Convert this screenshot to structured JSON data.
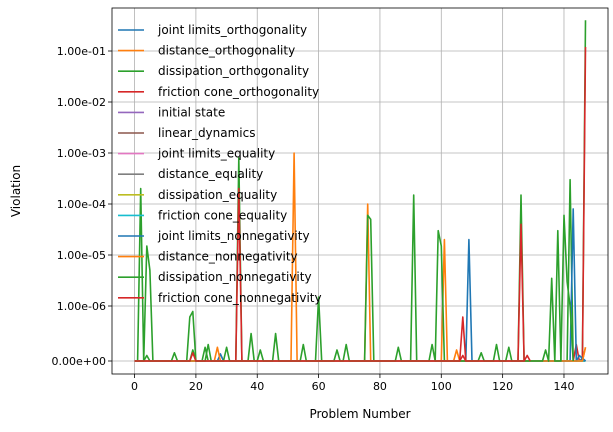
{
  "chart_data": {
    "type": "line",
    "xlabel": "Problem Number",
    "ylabel": "Violation",
    "xlim": [
      -7.35,
      154.35
    ],
    "x_ticks": [
      0,
      20,
      40,
      60,
      80,
      100,
      120,
      140
    ],
    "y_scale": "symlog",
    "y_tick_labels": [
      "0.00e+00",
      "1.00e-06",
      "1.00e-05",
      "1.00e-04",
      "1.00e-03",
      "1.00e-02",
      "1.00e-01"
    ],
    "grid": true,
    "legend_position": "upper-left",
    "series": [
      {
        "name": "joint limits_orthogonality",
        "color": "#1f77b4",
        "points": [
          [
            0,
            0
          ],
          [
            27,
            0
          ],
          [
            28,
            1.3e-07
          ],
          [
            29,
            0
          ],
          [
            108,
            0
          ],
          [
            109,
            2e-05
          ],
          [
            110,
            0
          ],
          [
            145,
            0
          ],
          [
            146,
            5e-08
          ],
          [
            147,
            0
          ]
        ]
      },
      {
        "name": "distance_orthogonality",
        "color": "#ff7f0e",
        "points": [
          [
            0,
            0
          ],
          [
            26,
            0
          ],
          [
            27,
            2.5e-07
          ],
          [
            28,
            0
          ],
          [
            51,
            0
          ],
          [
            52,
            0.001
          ],
          [
            53,
            0
          ],
          [
            75,
            0
          ],
          [
            76,
            0.0001
          ],
          [
            77,
            0
          ],
          [
            100,
            0
          ],
          [
            101,
            2e-05
          ],
          [
            102,
            0
          ],
          [
            104,
            0
          ],
          [
            105,
            2e-07
          ],
          [
            106,
            0
          ],
          [
            146,
            0
          ],
          [
            147,
            2.5e-07
          ]
        ]
      },
      {
        "name": "dissipation_orthogonality",
        "color": "#2ca02c",
        "points": [
          [
            0,
            0
          ],
          [
            1,
            0
          ],
          [
            2,
            0.0002
          ],
          [
            3,
            0
          ],
          [
            4,
            1.5e-05
          ],
          [
            5,
            5e-06
          ],
          [
            6,
            0
          ],
          [
            17,
            0
          ],
          [
            18,
            8e-07
          ],
          [
            19,
            9e-07
          ],
          [
            20,
            0
          ],
          [
            22,
            0
          ],
          [
            23,
            2.5e-07
          ],
          [
            24,
            0
          ],
          [
            33,
            0
          ],
          [
            34,
            0.0008
          ],
          [
            35,
            0
          ],
          [
            37,
            0
          ],
          [
            38,
            5e-07
          ],
          [
            39,
            0
          ],
          [
            59,
            0
          ],
          [
            60,
            1.5e-06
          ],
          [
            61,
            0
          ],
          [
            75,
            0
          ],
          [
            76,
            6e-05
          ],
          [
            77,
            5e-05
          ],
          [
            78,
            0
          ],
          [
            90,
            0
          ],
          [
            91,
            0.00015
          ],
          [
            92,
            0
          ],
          [
            98,
            0
          ],
          [
            99,
            3e-05
          ],
          [
            100,
            1.5e-05
          ],
          [
            101,
            0
          ],
          [
            125,
            0
          ],
          [
            126,
            0.00015
          ],
          [
            127,
            0
          ],
          [
            137,
            0
          ],
          [
            138,
            3e-05
          ],
          [
            139,
            0
          ],
          [
            141,
            0
          ],
          [
            142,
            0.0003
          ],
          [
            143,
            0
          ],
          [
            146,
            0
          ],
          [
            147,
            0.4
          ]
        ]
      },
      {
        "name": "friction cone_orthogonality",
        "color": "#d62728",
        "points": [
          [
            0,
            0
          ],
          [
            33,
            0
          ],
          [
            34,
            0.0002
          ],
          [
            35,
            0
          ],
          [
            106,
            0
          ],
          [
            107,
            8e-07
          ],
          [
            108,
            0
          ],
          [
            125,
            0
          ],
          [
            126,
            4e-05
          ],
          [
            127,
            0
          ],
          [
            143,
            0
          ],
          [
            144,
            3e-07
          ],
          [
            145,
            0
          ],
          [
            146,
            0
          ],
          [
            147,
            0.12
          ]
        ]
      },
      {
        "name": "initial state",
        "color": "#9467bd",
        "points": [
          [
            0,
            0
          ],
          [
            147,
            0
          ]
        ]
      },
      {
        "name": "linear_dynamics",
        "color": "#8c564b",
        "points": [
          [
            0,
            0
          ],
          [
            147,
            0
          ]
        ]
      },
      {
        "name": "joint limits_equality",
        "color": "#e377c2",
        "points": [
          [
            0,
            0
          ],
          [
            147,
            0
          ]
        ]
      },
      {
        "name": "distance_equality",
        "color": "#7f7f7f",
        "points": [
          [
            0,
            0
          ],
          [
            147,
            0
          ]
        ]
      },
      {
        "name": "dissipation_equality",
        "color": "#bcbd22",
        "points": [
          [
            0,
            0
          ],
          [
            147,
            0
          ]
        ]
      },
      {
        "name": "friction cone_equality",
        "color": "#17becf",
        "points": [
          [
            0,
            0
          ],
          [
            147,
            0
          ]
        ]
      },
      {
        "name": "joint limits_nonnegativity",
        "color": "#1f77b4",
        "points": [
          [
            0,
            0
          ],
          [
            142,
            0
          ],
          [
            143,
            8e-05
          ],
          [
            144,
            0
          ],
          [
            145,
            1e-07
          ],
          [
            146,
            5e-08
          ],
          [
            147,
            0
          ]
        ]
      },
      {
        "name": "distance_nonnegativity",
        "color": "#ff7f0e",
        "points": [
          [
            0,
            0
          ],
          [
            146,
            0
          ],
          [
            147,
            2.5e-07
          ]
        ]
      },
      {
        "name": "dissipation_nonnegativity",
        "color": "#2ca02c",
        "points": [
          [
            0,
            0
          ],
          [
            3,
            0
          ],
          [
            4,
            1e-07
          ],
          [
            5,
            0
          ],
          [
            12,
            0
          ],
          [
            13,
            1.5e-07
          ],
          [
            14,
            0
          ],
          [
            18,
            0
          ],
          [
            19,
            2e-07
          ],
          [
            20,
            0
          ],
          [
            23,
            0
          ],
          [
            24,
            3e-07
          ],
          [
            25,
            0
          ],
          [
            29,
            0
          ],
          [
            30,
            2.5e-07
          ],
          [
            31,
            0
          ],
          [
            40,
            0
          ],
          [
            41,
            2e-07
          ],
          [
            42,
            0
          ],
          [
            45,
            0
          ],
          [
            46,
            5e-07
          ],
          [
            47,
            0
          ],
          [
            54,
            0
          ],
          [
            55,
            3e-07
          ],
          [
            56,
            0
          ],
          [
            65,
            0
          ],
          [
            66,
            2e-07
          ],
          [
            67,
            0
          ],
          [
            68,
            0
          ],
          [
            69,
            3e-07
          ],
          [
            70,
            0
          ],
          [
            85,
            0
          ],
          [
            86,
            2.5e-07
          ],
          [
            87,
            0
          ],
          [
            96,
            0
          ],
          [
            97,
            3e-07
          ],
          [
            98,
            0
          ],
          [
            112,
            0
          ],
          [
            113,
            1.5e-07
          ],
          [
            114,
            0
          ],
          [
            117,
            0
          ],
          [
            118,
            3e-07
          ],
          [
            119,
            0
          ],
          [
            121,
            0
          ],
          [
            122,
            2.5e-07
          ],
          [
            123,
            0
          ],
          [
            133,
            0
          ],
          [
            134,
            2e-07
          ],
          [
            135,
            0
          ],
          [
            135,
            0
          ],
          [
            136,
            3.5e-06
          ],
          [
            137,
            0
          ],
          [
            139,
            0
          ],
          [
            140,
            6e-05
          ],
          [
            141,
            3e-06
          ],
          [
            142,
            1e-06
          ],
          [
            143,
            0
          ]
        ]
      },
      {
        "name": "friction cone_nonnegativity",
        "color": "#d62728",
        "points": [
          [
            0,
            0
          ],
          [
            18,
            0
          ],
          [
            19,
            1.5e-07
          ],
          [
            20,
            0
          ],
          [
            106,
            0
          ],
          [
            107,
            1e-07
          ],
          [
            108,
            0
          ],
          [
            127,
            0
          ],
          [
            128,
            1e-07
          ],
          [
            129,
            0
          ]
        ]
      }
    ]
  }
}
